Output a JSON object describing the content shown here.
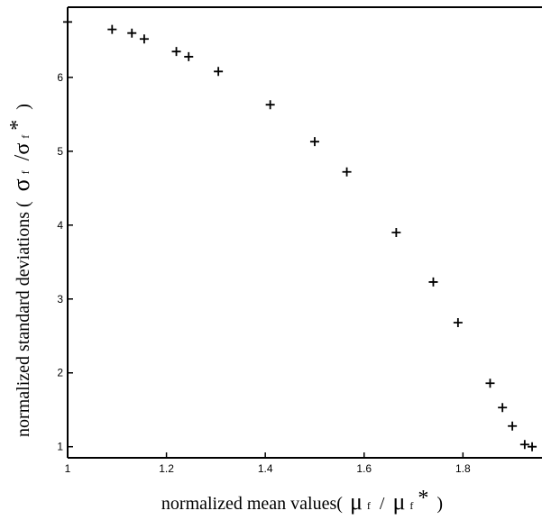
{
  "chart_data": {
    "type": "scatter",
    "marker": "+",
    "xlabel": {
      "prefix": "normalized mean values(",
      "mu": "μ",
      "sub1": "f",
      "slash": "/",
      "sub2": "f",
      "star": "*",
      "close": ")"
    },
    "ylabel": {
      "prefix": "normalized standard deviations (",
      "sigma": "σ",
      "sub1": "f",
      "slash": "/σ",
      "sub2": "f",
      "star": "*",
      "close": ")"
    },
    "xlim": [
      1.0,
      1.96
    ],
    "ylim": [
      0.85,
      6.95
    ],
    "x_ticks": [
      {
        "value": 1.0,
        "label": "1"
      },
      {
        "value": 1.2,
        "label": "1.2"
      },
      {
        "value": 1.4,
        "label": "1.4"
      },
      {
        "value": 1.6,
        "label": "1.6"
      },
      {
        "value": 1.8,
        "label": "1.8"
      }
    ],
    "y_ticks": [
      {
        "value": 1,
        "label": "1"
      },
      {
        "value": 2,
        "label": "2"
      },
      {
        "value": 3,
        "label": "3"
      },
      {
        "value": 4,
        "label": "4"
      },
      {
        "value": 5,
        "label": "5"
      },
      {
        "value": 6,
        "label": "6"
      }
    ],
    "grid": false,
    "points": [
      {
        "x": 1.0,
        "y": 6.75
      },
      {
        "x": 1.09,
        "y": 6.65
      },
      {
        "x": 1.13,
        "y": 6.6
      },
      {
        "x": 1.155,
        "y": 6.52
      },
      {
        "x": 1.22,
        "y": 6.35
      },
      {
        "x": 1.245,
        "y": 6.28
      },
      {
        "x": 1.305,
        "y": 6.08
      },
      {
        "x": 1.41,
        "y": 5.63
      },
      {
        "x": 1.5,
        "y": 5.13
      },
      {
        "x": 1.565,
        "y": 4.72
      },
      {
        "x": 1.665,
        "y": 3.9
      },
      {
        "x": 1.74,
        "y": 3.23
      },
      {
        "x": 1.79,
        "y": 2.68
      },
      {
        "x": 1.855,
        "y": 1.86
      },
      {
        "x": 1.88,
        "y": 1.53
      },
      {
        "x": 1.9,
        "y": 1.28
      },
      {
        "x": 1.925,
        "y": 1.03
      },
      {
        "x": 1.94,
        "y": 1.0
      }
    ]
  }
}
